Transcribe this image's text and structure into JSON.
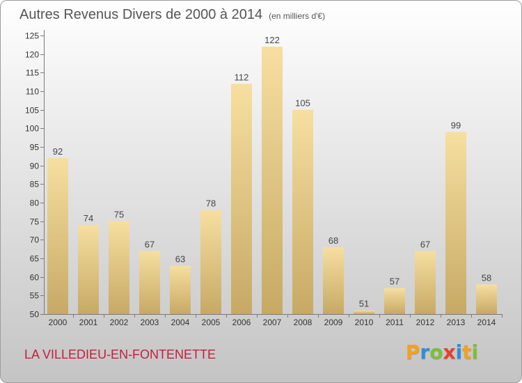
{
  "chart_data": {
    "type": "bar",
    "title": "Autres Revenus Divers de 2000 à 2014",
    "subtitle": "(en milliers d'€)",
    "categories": [
      "2000",
      "2001",
      "2002",
      "2003",
      "2004",
      "2005",
      "2006",
      "2007",
      "2008",
      "2009",
      "2010",
      "2011",
      "2012",
      "2013",
      "2014"
    ],
    "values": [
      92,
      74,
      75,
      67,
      63,
      78,
      112,
      122,
      105,
      68,
      51,
      57,
      67,
      99,
      58
    ],
    "ylim": [
      50,
      125
    ],
    "yticks": [
      50,
      55,
      60,
      65,
      70,
      75,
      80,
      85,
      90,
      95,
      100,
      105,
      110,
      115,
      120,
      125
    ],
    "grid": false,
    "data_labels": true
  },
  "location": "LA VILLEDIEU-EN-FONTENETTE",
  "logo": {
    "letters": [
      {
        "char": "P",
        "color": "#f5a11c"
      },
      {
        "char": "r",
        "color": "#2e8fd8"
      },
      {
        "char": "o",
        "color": "#7cbf3a"
      },
      {
        "char": "x",
        "color": "#e8412c"
      },
      {
        "char": "i",
        "color": "#2e8fd8"
      },
      {
        "char": "t",
        "color": "#f5a11c"
      },
      {
        "char": "i",
        "color": "#7cbf3a"
      }
    ]
  },
  "colors": {
    "title": "#555555",
    "axis": "#7a7a7a",
    "bar_top": "#f6dfa0",
    "bar_bottom": "#c7a965",
    "location": "#c41e3a"
  }
}
